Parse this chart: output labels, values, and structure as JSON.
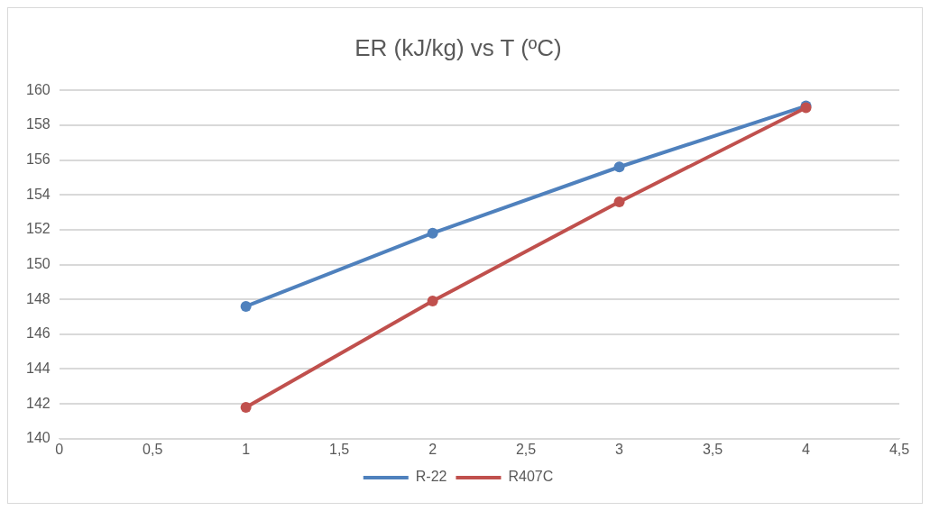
{
  "chart_data": {
    "type": "line",
    "title": "ER (kJ/kg) vs T (ºC)",
    "x": [
      1,
      2,
      3,
      4
    ],
    "series": [
      {
        "name": "R-22",
        "color": "#4f81bd",
        "values": [
          147.6,
          151.8,
          155.6,
          159.1
        ]
      },
      {
        "name": "R407C",
        "color": "#c0504d",
        "values": [
          141.8,
          147.9,
          153.6,
          159.0
        ]
      }
    ],
    "xlim": [
      0,
      4.5
    ],
    "xticks": [
      0,
      {
        "value": 0.5,
        "label": "0,5"
      },
      1,
      {
        "value": 1.5,
        "label": "1,5"
      },
      2,
      {
        "value": 2.5,
        "label": "2,5"
      },
      3,
      {
        "value": 3.5,
        "label": "3,5"
      },
      4,
      {
        "value": 4.5,
        "label": "4,5"
      }
    ],
    "ylim": [
      140,
      160
    ],
    "yticks": [
      140,
      142,
      144,
      146,
      148,
      150,
      152,
      154,
      156,
      158,
      160
    ],
    "grid": "y",
    "legend": "bottom",
    "marker": "circle",
    "line_style": "solid"
  }
}
